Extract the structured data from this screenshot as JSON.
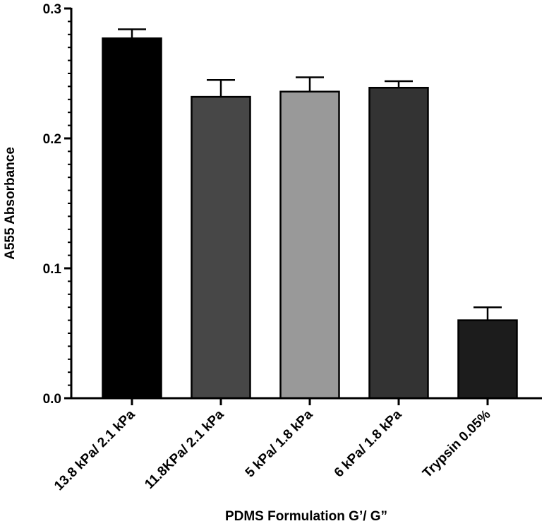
{
  "chart_data": {
    "type": "bar",
    "title": "",
    "xlabel": "PDMS Formulation G’/ G”",
    "ylabel": "A555 Absorbance",
    "ylim": [
      0,
      0.3
    ],
    "yticks": [
      0.0,
      0.1,
      0.2,
      0.3
    ],
    "ytick_labels": [
      "0.0",
      "0.1",
      "0.2",
      "0.3"
    ],
    "minor_ticks_per_major": 10,
    "grid": false,
    "categories": [
      "13.8 kPa/ 2.1 kPa",
      "11.8KPa/ 2.1 kPa",
      "5 kPa/ 1.8 kPa",
      "6 kPa/ 1.8 kPa",
      "Trypsin 0.05%"
    ],
    "values": [
      0.277,
      0.232,
      0.236,
      0.239,
      0.06
    ],
    "errors": [
      0.007,
      0.013,
      0.011,
      0.005,
      0.01
    ],
    "bar_colors": [
      "#000000",
      "#474747",
      "#999999",
      "#333333",
      "#1c1c1c"
    ]
  }
}
